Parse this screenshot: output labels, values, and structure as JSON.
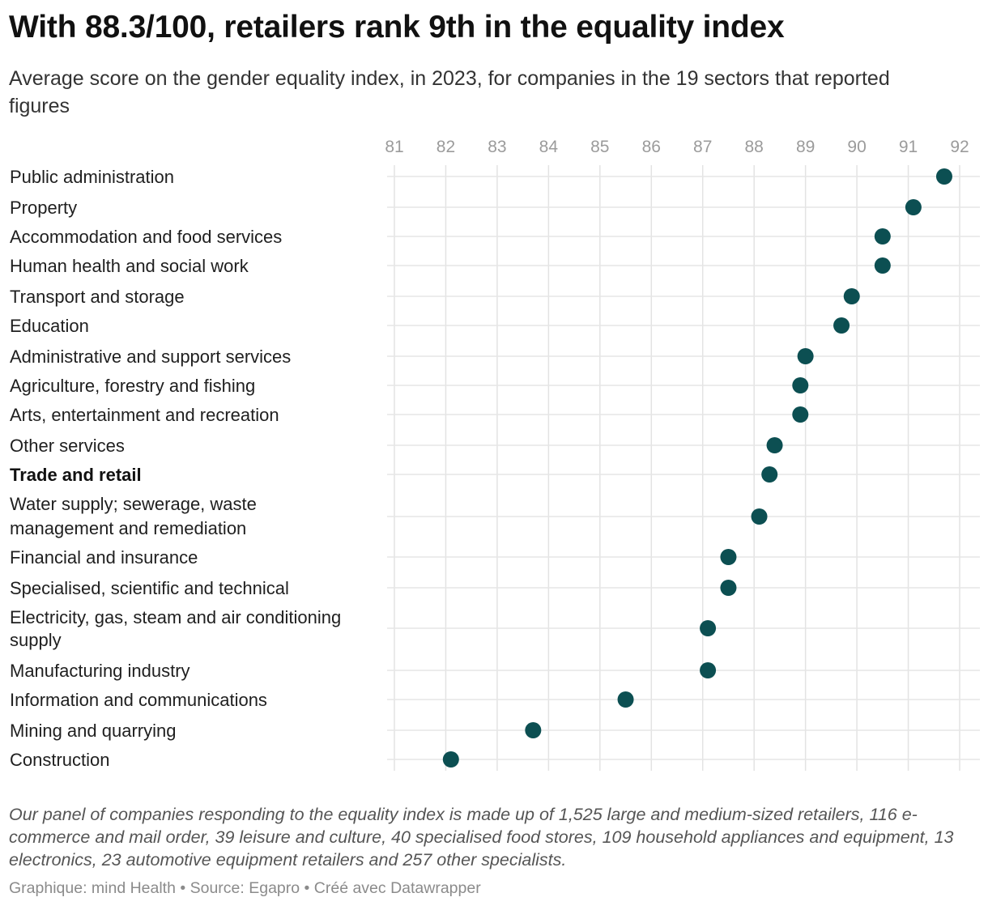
{
  "header": {
    "title": "With 88.3/100, retailers rank 9th in the equality index",
    "subtitle": "Average score on the gender equality index, in 2023, for companies in the 19 sectors that reported figures"
  },
  "chart_data": {
    "type": "scatter",
    "x_ticks": [
      "81",
      "82",
      "83",
      "84",
      "85",
      "86",
      "87",
      "88",
      "89",
      "90",
      "91",
      "92"
    ],
    "xlim": [
      81,
      92
    ],
    "grid": true,
    "dot_color": "#0c4f52",
    "highlight_category": "Trade and retail",
    "categories": [
      "Public administration",
      "Property",
      "Accommodation and food services",
      "Human health and social work",
      "Transport and storage",
      "Education",
      "Administrative and support services",
      "Agriculture, forestry and fishing",
      "Arts, entertainment and recreation",
      "Other services",
      "Trade and retail",
      "Water supply; sewerage, waste management and remediation",
      "Financial and insurance",
      "Specialised, scientific and technical",
      "Electricity, gas, steam and air conditioning supply",
      "Manufacturing industry",
      "Information and communications",
      "Mining and quarrying",
      "Construction"
    ],
    "values": [
      91.7,
      91.1,
      90.5,
      90.5,
      89.9,
      89.7,
      89.0,
      88.9,
      88.9,
      88.4,
      88.3,
      88.1,
      87.5,
      87.5,
      87.1,
      87.1,
      85.5,
      83.7,
      82.1
    ]
  },
  "footer": {
    "note": "Our panel of companies responding to the equality index is made up of 1,525 large and medium-sized retailers, 116 e-commerce and mail order, 39 leisure and culture, 40 specialised food stores, 109 household appliances and equipment, 13 electronics, 23 automotive equipment retailers and 257 other specialists.",
    "credits": "Graphique: mind Health • Source: Egapro • Créé avec Datawrapper"
  }
}
